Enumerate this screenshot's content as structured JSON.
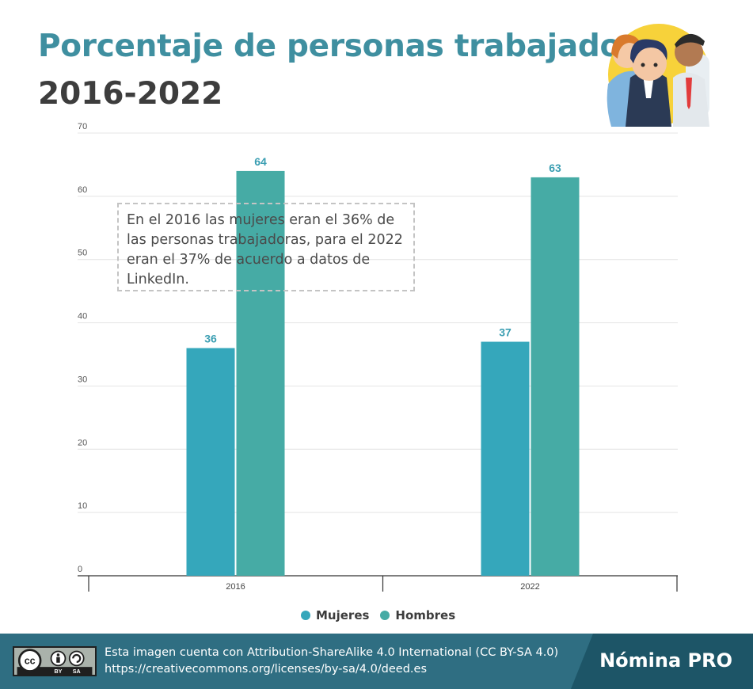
{
  "header": {
    "title_line1": "Porcentaje de personas trabajadoras",
    "title_line2": "2016-2022"
  },
  "annotation": {
    "text": "En el 2016 las mujeres eran el 36% de las personas trabajadoras, para el 2022 eran el 37% de acuerdo a datos de LinkedIn."
  },
  "chart_data": {
    "type": "bar",
    "categories": [
      "2016",
      "2022"
    ],
    "series": [
      {
        "name": "Mujeres",
        "values": [
          36,
          37
        ],
        "color": "#35a7bb"
      },
      {
        "name": "Hombres",
        "values": [
          64,
          63
        ],
        "color": "#46aba5"
      }
    ],
    "ylim": [
      0,
      70
    ],
    "yticks": [
      0,
      10,
      20,
      30,
      40,
      50,
      60,
      70
    ],
    "grid": true,
    "legend": "bottom-center",
    "label_color": "#3a9eb2"
  },
  "legend": {
    "items": [
      {
        "label": "Mujeres",
        "color": "#35a7bb"
      },
      {
        "label": "Hombres",
        "color": "#46aba5"
      }
    ]
  },
  "footer": {
    "license_line1": "Esta imagen cuenta con Attribution-ShareAlike 4.0 International (CC BY-SA 4.0)",
    "license_line2": "https://creativecommons.org/licenses/by-sa/4.0/deed.es",
    "badge_labels": [
      "cc",
      "BY",
      "SA"
    ],
    "brand": "Nómina PRO"
  }
}
